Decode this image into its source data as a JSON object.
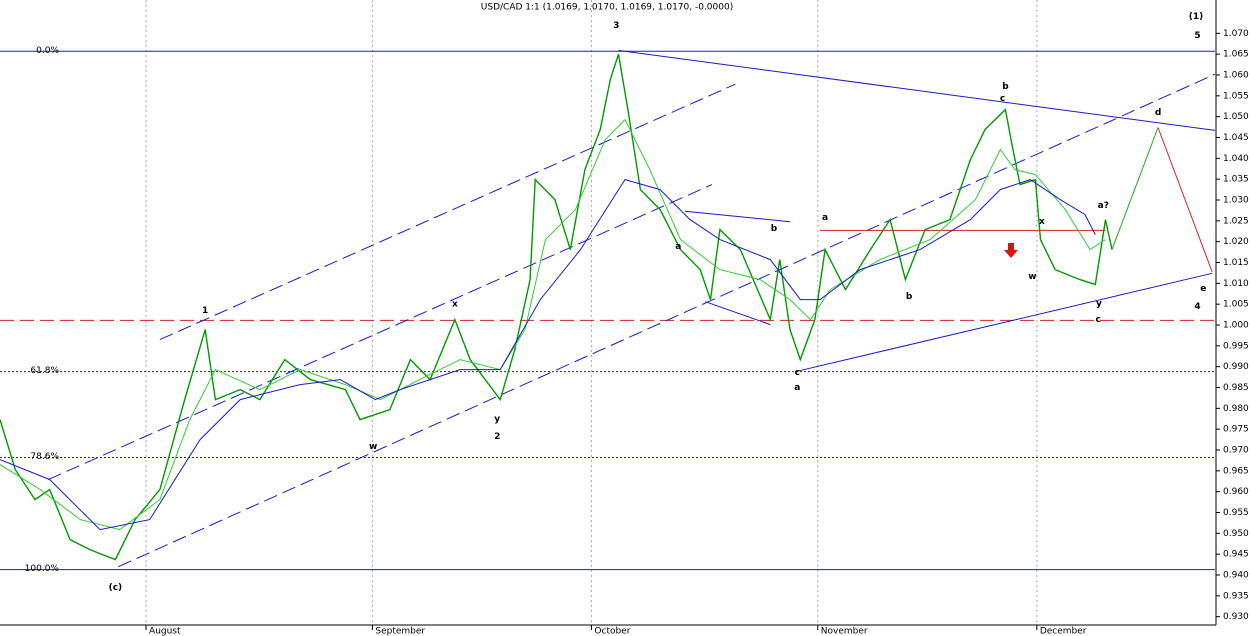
{
  "chart_data": {
    "type": "line",
    "title": "USD/CAD 1:1 (1.0169, 1.0170, 1.0169, 1.0170, -0.0000)",
    "xlim": [
      0,
      166.4
    ],
    "ylim": [
      0.928,
      1.078
    ],
    "xticks": [
      {
        "value": 20,
        "label": "August"
      },
      {
        "value": 51,
        "label": "September"
      },
      {
        "value": 81,
        "label": "October"
      },
      {
        "value": 112,
        "label": "November"
      },
      {
        "value": 142,
        "label": "December"
      }
    ],
    "yticks": [
      {
        "value": 0.93,
        "label": "0.930"
      },
      {
        "value": 0.935,
        "label": "0.935"
      },
      {
        "value": 0.94,
        "label": "0.940"
      },
      {
        "value": 0.945,
        "label": "0.945"
      },
      {
        "value": 0.95,
        "label": "0.950"
      },
      {
        "value": 0.955,
        "label": "0.955"
      },
      {
        "value": 0.96,
        "label": "0.960"
      },
      {
        "value": 0.965,
        "label": "0.965"
      },
      {
        "value": 0.97,
        "label": "0.970"
      },
      {
        "value": 0.975,
        "label": "0.975"
      },
      {
        "value": 0.98,
        "label": "0.980"
      },
      {
        "value": 0.985,
        "label": "0.985"
      },
      {
        "value": 0.99,
        "label": "0.990"
      },
      {
        "value": 0.995,
        "label": "0.995"
      },
      {
        "value": 1.0,
        "label": "1.000"
      },
      {
        "value": 1.005,
        "label": "1.005"
      },
      {
        "value": 1.01,
        "label": "1.010"
      },
      {
        "value": 1.015,
        "label": "1.015"
      },
      {
        "value": 1.02,
        "label": "1.020"
      },
      {
        "value": 1.025,
        "label": "1.025"
      },
      {
        "value": 1.03,
        "label": "1.030"
      },
      {
        "value": 1.035,
        "label": "1.035"
      },
      {
        "value": 1.04,
        "label": "1.040"
      },
      {
        "value": 1.045,
        "label": "1.045"
      },
      {
        "value": 1.05,
        "label": "1.050"
      },
      {
        "value": 1.055,
        "label": "1.055"
      },
      {
        "value": 1.06,
        "label": "1.060"
      },
      {
        "value": 1.065,
        "label": "1.065"
      },
      {
        "value": 1.07,
        "label": "1.070"
      }
    ],
    "series": [
      {
        "color": "#009a00",
        "width": 1.4,
        "x": [
          0,
          2.1,
          4.8,
          6.8,
          9.6,
          12.3,
          15.8,
          18.5,
          21.9,
          25.3,
          28.1,
          29.5,
          32.9,
          35.6,
          39.0,
          42.5,
          47.3,
          49.3,
          53.4,
          56.2,
          58.9,
          62.3,
          64.4,
          68.5,
          70.5,
          72.6,
          73.3,
          76.0,
          78.1,
          80.1,
          82.2,
          83.6,
          84.7,
          86.0,
          87.7,
          90.4,
          93.2,
          95.9,
          97.3,
          98.6,
          101.4,
          105.5,
          106.8,
          108.2,
          109.6,
          111.6,
          113.0,
          115.8,
          119.2,
          121.9,
          124.0,
          126.7,
          130.1,
          132.9,
          134.9,
          137.7,
          138.6,
          139.7,
          141.8,
          142.5,
          144.5,
          147.9,
          150.0,
          151.4,
          152.3
        ],
        "values": [
          0.9773,
          0.9653,
          0.9581,
          0.9605,
          0.9485,
          0.9461,
          0.9437,
          0.9533,
          0.9605,
          0.9821,
          0.9989,
          0.9821,
          0.9845,
          0.9821,
          0.9917,
          0.9869,
          0.9845,
          0.9773,
          0.9797,
          0.9917,
          0.9869,
          1.0013,
          0.9917,
          0.9821,
          0.9941,
          1.0109,
          1.0349,
          1.0301,
          1.0181,
          1.0373,
          1.0469,
          1.059,
          1.065,
          1.0517,
          1.0325,
          1.0277,
          1.0181,
          1.0133,
          1.0061,
          1.0229,
          1.0181,
          1.0013,
          1.0157,
          0.9989,
          0.9917,
          1.0013,
          1.0181,
          1.0085,
          1.0181,
          1.0253,
          1.0109,
          1.0229,
          1.0253,
          1.0397,
          1.0469,
          1.0517,
          1.0433,
          1.0337,
          1.0349,
          1.0205,
          1.0133,
          1.0109,
          1.0097,
          1.0253,
          1.0181
        ]
      },
      {
        "color": "#33cc33",
        "width": 1,
        "x": [
          0,
          5.5,
          11.0,
          16.4,
          21.9,
          26.0,
          29.5,
          35.6,
          41.1,
          47.3,
          52.1,
          57.5,
          63.0,
          68.5,
          71.9,
          74.7,
          78.8,
          82.9,
          85.6,
          89.0,
          93.2,
          98.6,
          104.1,
          108.2,
          111.0,
          113.7,
          120.5,
          127.4,
          133.6,
          137.0,
          139.0,
          141.8,
          145.9,
          149.3,
          151.4
        ],
        "values": [
          0.9665,
          0.9605,
          0.9533,
          0.9509,
          0.9581,
          0.9773,
          0.9893,
          0.9845,
          0.9893,
          0.9857,
          0.9821,
          0.9869,
          0.9917,
          0.9893,
          0.9989,
          1.0205,
          1.0277,
          1.0445,
          1.0493,
          1.0373,
          1.0205,
          1.0133,
          1.0109,
          1.0061,
          1.0013,
          1.0085,
          1.0157,
          1.0205,
          1.0301,
          1.0421,
          1.0373,
          1.0361,
          1.0277,
          1.0181,
          1.0205
        ]
      },
      {
        "color": "#1a1acc",
        "width": 1,
        "x": [
          0,
          6.8,
          13.7,
          20.5,
          27.4,
          32.9,
          41.1,
          46.6,
          51.4,
          54.8,
          63.0,
          68.5,
          74.0,
          79.5,
          85.6,
          90.4,
          94.5,
          98.6,
          105.5,
          109.6,
          112.3,
          117.8,
          126.0,
          132.9,
          137.0,
          141.1,
          145.2,
          148.6,
          150.0
        ],
        "values": [
          0.9677,
          0.9629,
          0.9509,
          0.9533,
          0.9725,
          0.9821,
          0.9857,
          0.9869,
          0.9821,
          0.9845,
          0.9893,
          0.9893,
          1.0061,
          1.0181,
          1.0349,
          1.0325,
          1.0253,
          1.0205,
          1.0157,
          1.0061,
          1.0061,
          1.0133,
          1.0181,
          1.0253,
          1.0325,
          1.0349,
          1.0301,
          1.0265,
          1.0217
        ]
      }
    ],
    "levels": [
      {
        "label": "0.0%",
        "value": 1.0657,
        "color": "#1a1acc",
        "style": "solid"
      },
      {
        "label": "61.8%",
        "value": 0.9888,
        "color": "#1a1acc",
        "style": "dotted"
      },
      {
        "label": "78.6%",
        "value": 0.9682,
        "color": "#1a1acc",
        "style": "dotted"
      },
      {
        "label": "100.0%",
        "value": 0.9413,
        "color": "#1a1acc",
        "style": "solid"
      },
      {
        "value": 1.0011,
        "color": "#cc2222",
        "style": "dashed"
      }
    ],
    "trendlines": [
      {
        "x": [
          84.7,
          166.4
        ],
        "y": [
          1.0659,
          1.0467
        ],
        "color": "#1a1acc",
        "style": "solid"
      },
      {
        "x": [
          108.9,
          166.0
        ],
        "y": [
          0.9888,
          1.0124
        ],
        "color": "#1a1acc",
        "style": "solid"
      },
      {
        "x": [
          21.9,
          100.7
        ],
        "y": [
          0.9965,
          1.0578
        ],
        "color": "#1a1acc",
        "style": "dashed"
      },
      {
        "x": [
          6.6,
          97.5
        ],
        "y": [
          0.9629,
          1.0337
        ],
        "color": "#1a1acc",
        "style": "dashed"
      },
      {
        "x": [
          16.2,
          166.4
        ],
        "y": [
          0.942,
          1.0602
        ],
        "color": "#1a1acc",
        "style": "dashed"
      },
      {
        "x": [
          93.8,
          108.2
        ],
        "y": [
          1.0273,
          1.0248
        ],
        "color": "#1a1acc",
        "style": "solid"
      },
      {
        "x": [
          96.6,
          105.5
        ],
        "y": [
          1.0056,
          1.0001
        ],
        "color": "#1a1acc",
        "style": "solid"
      },
      {
        "x": [
          112.3,
          151.4
        ],
        "y": [
          1.0227,
          1.0227
        ],
        "color": "#cc2222",
        "style": "solid"
      },
      {
        "x": [
          152.3,
          158.6
        ],
        "y": [
          1.0181,
          1.0474
        ],
        "color": "#22aa22",
        "style": "solid"
      },
      {
        "x": [
          158.6,
          166.0
        ],
        "y": [
          1.0474,
          1.0128
        ],
        "color": "#cc2222",
        "style": "solid"
      }
    ],
    "annotations": [
      {
        "text": "(1)",
        "x": 163.8,
        "y": 1.0741,
        "color": "#22aa22"
      },
      {
        "text": "5",
        "x": 164.0,
        "y": 1.0695,
        "color": "#cc00cc"
      },
      {
        "text": "3",
        "x": 84.4,
        "y": 1.0719,
        "color": "#cc00cc"
      },
      {
        "text": "1",
        "x": 28.1,
        "y": 1.0035,
        "color": "#cc00cc"
      },
      {
        "text": "x",
        "x": 62.3,
        "y": 1.0051,
        "color": "#1a1acc"
      },
      {
        "text": "y",
        "x": 68.1,
        "y": 0.9775,
        "color": "#1a1acc"
      },
      {
        "text": "2",
        "x": 68.1,
        "y": 0.9732,
        "color": "#cc00cc"
      },
      {
        "text": "w",
        "x": 51.1,
        "y": 0.9708,
        "color": "#1a1acc"
      },
      {
        "text": "(c)",
        "x": 15.8,
        "y": 0.937,
        "color": "#22aa22"
      },
      {
        "text": "a",
        "x": 92.9,
        "y": 1.0188,
        "color": "#cc2222"
      },
      {
        "text": "b",
        "x": 106.0,
        "y": 1.0232,
        "color": "#cc2222"
      },
      {
        "text": "c",
        "x": 109.2,
        "y": 0.9886,
        "color": "#cc2222"
      },
      {
        "text": "a",
        "x": 109.2,
        "y": 0.985,
        "color": "#1a1acc"
      },
      {
        "text": "a",
        "x": 113.0,
        "y": 1.0258,
        "color": "#cc2222"
      },
      {
        "text": "b",
        "x": 124.5,
        "y": 1.0068,
        "color": "#cc2222"
      },
      {
        "text": "b",
        "x": 137.7,
        "y": 1.0573,
        "color": "#1a1acc"
      },
      {
        "text": "c",
        "x": 137.3,
        "y": 1.0544,
        "color": "#cc2222"
      },
      {
        "text": "x",
        "x": 142.7,
        "y": 1.0249,
        "color": "#cc2222"
      },
      {
        "text": "w",
        "x": 141.4,
        "y": 1.0116,
        "color": "#cc2222"
      },
      {
        "text": "y",
        "x": 150.5,
        "y": 1.0052,
        "color": "#cc2222"
      },
      {
        "text": "c",
        "x": 150.4,
        "y": 1.0013,
        "color": "#1a1acc"
      },
      {
        "text": "a?",
        "x": 151.1,
        "y": 1.0287,
        "color": "#cc2222"
      },
      {
        "text": "d",
        "x": 158.6,
        "y": 1.051,
        "color": "#1a1acc"
      },
      {
        "text": "e",
        "x": 164.8,
        "y": 1.0088,
        "color": "#1a1acc"
      },
      {
        "text": "4",
        "x": 164.0,
        "y": 1.0044,
        "color": "#cc00cc"
      }
    ]
  }
}
